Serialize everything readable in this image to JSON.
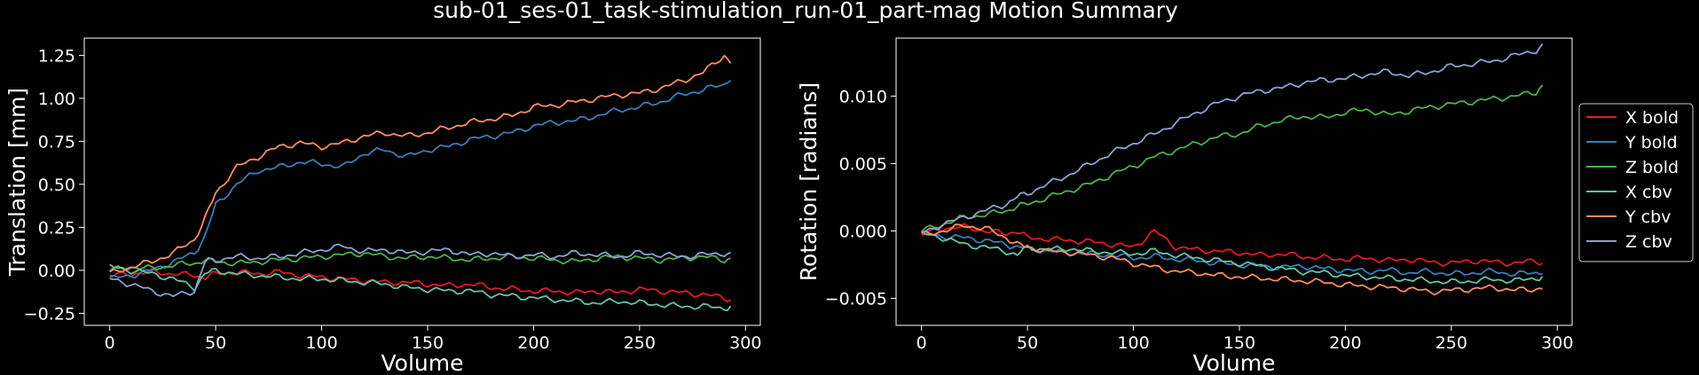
{
  "figure": {
    "title": "sub-01_ses-01_task-stimulation_run-01_part-mag Motion Summary",
    "background": "#000000",
    "foreground": "#ffffff"
  },
  "legend": {
    "placement": "right",
    "entries": [
      {
        "name": "X bold",
        "color": "#e41a1c"
      },
      {
        "name": "Y bold",
        "color": "#377eb8"
      },
      {
        "name": "Z bold",
        "color": "#4daf4a"
      },
      {
        "name": "X cbv",
        "color": "#66c2a5"
      },
      {
        "name": "Y cbv",
        "color": "#fc8d62"
      },
      {
        "name": "Z cbv",
        "color": "#8da0cb"
      }
    ]
  },
  "chart_data": [
    {
      "type": "line",
      "xlabel": "Volume",
      "ylabel": "Translation [mm]",
      "xlim": [
        -12,
        307
      ],
      "ylim": [
        -0.32,
        1.35
      ],
      "xticks": [
        0,
        50,
        100,
        150,
        200,
        250,
        300
      ],
      "yticks": [
        -0.25,
        0.0,
        0.25,
        0.5,
        0.75,
        1.0,
        1.25
      ],
      "ytick_labels": [
        "−0.25",
        "0.00",
        "0.25",
        "0.50",
        "0.75",
        "1.00",
        "1.25"
      ],
      "grid": false,
      "x": [
        0,
        10,
        20,
        30,
        40,
        45,
        50,
        60,
        70,
        80,
        90,
        100,
        110,
        120,
        130,
        140,
        150,
        160,
        170,
        180,
        190,
        200,
        210,
        220,
        230,
        240,
        250,
        260,
        270,
        280,
        290,
        293
      ],
      "series": [
        {
          "name": "X bold",
          "color": "#e41a1c",
          "values": [
            -0.03,
            -0.02,
            -0.01,
            -0.02,
            -0.03,
            -0.04,
            -0.02,
            -0.01,
            -0.02,
            -0.01,
            -0.03,
            -0.04,
            -0.05,
            -0.06,
            -0.07,
            -0.07,
            -0.08,
            -0.09,
            -0.08,
            -0.1,
            -0.11,
            -0.12,
            -0.12,
            -0.13,
            -0.12,
            -0.13,
            -0.11,
            -0.12,
            -0.13,
            -0.14,
            -0.16,
            -0.17
          ]
        },
        {
          "name": "Y bold",
          "color": "#377eb8",
          "values": [
            -0.05,
            -0.03,
            0.0,
            0.05,
            0.1,
            0.2,
            0.38,
            0.5,
            0.58,
            0.6,
            0.63,
            0.62,
            0.6,
            0.68,
            0.7,
            0.66,
            0.7,
            0.72,
            0.76,
            0.78,
            0.8,
            0.84,
            0.86,
            0.87,
            0.9,
            0.93,
            0.95,
            0.98,
            1.02,
            1.05,
            1.08,
            1.12
          ]
        },
        {
          "name": "Z bold",
          "color": "#4daf4a",
          "values": [
            0.0,
            0.02,
            0.01,
            0.03,
            0.04,
            0.06,
            0.05,
            0.04,
            0.05,
            0.06,
            0.07,
            0.08,
            0.09,
            0.1,
            0.08,
            0.07,
            0.08,
            0.07,
            0.06,
            0.07,
            0.08,
            0.07,
            0.06,
            0.05,
            0.07,
            0.08,
            0.07,
            0.06,
            0.07,
            0.08,
            0.06,
            0.07
          ]
        },
        {
          "name": "X cbv",
          "color": "#66c2a5",
          "values": [
            0.02,
            0.0,
            -0.02,
            -0.05,
            -0.1,
            -0.02,
            0.0,
            -0.02,
            -0.03,
            -0.04,
            -0.05,
            -0.05,
            -0.06,
            -0.07,
            -0.08,
            -0.1,
            -0.11,
            -0.12,
            -0.12,
            -0.14,
            -0.15,
            -0.16,
            -0.17,
            -0.18,
            -0.19,
            -0.18,
            -0.19,
            -0.2,
            -0.21,
            -0.21,
            -0.22,
            -0.21
          ]
        },
        {
          "name": "Y cbv",
          "color": "#fc8d62",
          "values": [
            -0.02,
            0.02,
            0.05,
            0.1,
            0.18,
            0.3,
            0.45,
            0.6,
            0.66,
            0.72,
            0.74,
            0.72,
            0.74,
            0.78,
            0.8,
            0.78,
            0.8,
            0.83,
            0.86,
            0.88,
            0.9,
            0.95,
            0.96,
            0.98,
            1.0,
            1.02,
            1.03,
            1.06,
            1.1,
            1.15,
            1.25,
            1.21
          ]
        },
        {
          "name": "Z cbv",
          "color": "#8da0cb",
          "values": [
            -0.05,
            -0.08,
            -0.12,
            -0.15,
            -0.12,
            0.05,
            0.06,
            0.08,
            0.07,
            0.08,
            0.1,
            0.12,
            0.14,
            0.11,
            0.12,
            0.1,
            0.11,
            0.12,
            0.09,
            0.1,
            0.08,
            0.09,
            0.08,
            0.1,
            0.09,
            0.08,
            0.1,
            0.09,
            0.08,
            0.09,
            0.1,
            0.09
          ]
        }
      ]
    },
    {
      "type": "line",
      "xlabel": "Volume",
      "ylabel": "Rotation [radians]",
      "xlim": [
        -12,
        307
      ],
      "ylim": [
        -0.007,
        0.0143
      ],
      "xticks": [
        0,
        50,
        100,
        150,
        200,
        250,
        300
      ],
      "yticks": [
        -0.005,
        0.0,
        0.005,
        0.01
      ],
      "ytick_labels": [
        "−0.005",
        "0.000",
        "0.005",
        "0.010"
      ],
      "grid": false,
      "x": [
        0,
        10,
        20,
        30,
        40,
        45,
        50,
        60,
        70,
        80,
        90,
        100,
        110,
        120,
        130,
        140,
        150,
        160,
        170,
        180,
        190,
        200,
        210,
        220,
        230,
        240,
        250,
        260,
        270,
        280,
        290,
        293
      ],
      "series": [
        {
          "name": "X bold",
          "color": "#e41a1c",
          "values": [
            -0.0003,
            0.0002,
            0.0003,
            0.0,
            -0.0002,
            0.0,
            -0.0005,
            -0.0006,
            -0.0007,
            -0.0008,
            -0.001,
            -0.0012,
            0.0,
            -0.0012,
            -0.0014,
            -0.0015,
            -0.0016,
            -0.0018,
            -0.0017,
            -0.0019,
            -0.002,
            -0.0021,
            -0.002,
            -0.0022,
            -0.0021,
            -0.0023,
            -0.0024,
            -0.0022,
            -0.0023,
            -0.0024,
            -0.0022,
            -0.0024
          ]
        },
        {
          "name": "Y bold",
          "color": "#377eb8",
          "values": [
            -0.0002,
            -0.0004,
            -0.0005,
            -0.0007,
            -0.001,
            -0.0012,
            -0.0013,
            -0.0015,
            -0.0016,
            -0.0017,
            -0.0018,
            -0.002,
            -0.0019,
            -0.0021,
            -0.0022,
            -0.0024,
            -0.0025,
            -0.0026,
            -0.0027,
            -0.0026,
            -0.0028,
            -0.0029,
            -0.003,
            -0.0029,
            -0.0031,
            -0.003,
            -0.0032,
            -0.0031,
            -0.003,
            -0.0032,
            -0.0031,
            -0.003
          ]
        },
        {
          "name": "Z bold",
          "color": "#4daf4a",
          "values": [
            0.0,
            0.0005,
            0.001,
            0.0012,
            0.0015,
            0.0018,
            0.002,
            0.0025,
            0.003,
            0.0035,
            0.0042,
            0.0048,
            0.0055,
            0.006,
            0.0065,
            0.007,
            0.0072,
            0.0078,
            0.0082,
            0.0085,
            0.0084,
            0.0088,
            0.009,
            0.0086,
            0.0089,
            0.0092,
            0.0094,
            0.0096,
            0.0098,
            0.01,
            0.0103,
            0.0108
          ]
        },
        {
          "name": "X cbv",
          "color": "#66c2a5",
          "values": [
            -0.0002,
            -0.0005,
            -0.001,
            -0.0012,
            -0.0015,
            -0.0018,
            -0.0012,
            -0.0014,
            -0.0013,
            -0.0015,
            -0.0016,
            -0.0017,
            -0.0015,
            -0.0018,
            -0.002,
            -0.0022,
            -0.0024,
            -0.0026,
            -0.0028,
            -0.003,
            -0.0031,
            -0.0033,
            -0.0034,
            -0.0035,
            -0.0036,
            -0.0037,
            -0.0038,
            -0.0037,
            -0.0036,
            -0.0037,
            -0.0035,
            -0.0034
          ]
        },
        {
          "name": "Y cbv",
          "color": "#fc8d62",
          "values": [
            -0.0003,
            0.0,
            0.0004,
            0.0002,
            -0.0005,
            -0.001,
            -0.0012,
            -0.0015,
            -0.0016,
            -0.0018,
            -0.002,
            -0.0024,
            -0.0027,
            -0.003,
            -0.0031,
            -0.0033,
            -0.0034,
            -0.0035,
            -0.0036,
            -0.0037,
            -0.0038,
            -0.004,
            -0.0041,
            -0.0042,
            -0.0043,
            -0.0045,
            -0.0044,
            -0.0043,
            -0.0042,
            -0.0044,
            -0.0043,
            -0.0042
          ]
        },
        {
          "name": "Z cbv",
          "color": "#8da0cb",
          "values": [
            -0.0002,
            0.0005,
            0.001,
            0.0015,
            0.002,
            0.0025,
            0.0028,
            0.0035,
            0.0042,
            0.005,
            0.0058,
            0.0065,
            0.0072,
            0.008,
            0.0088,
            0.0095,
            0.01,
            0.0104,
            0.0106,
            0.011,
            0.0112,
            0.0113,
            0.0116,
            0.0118,
            0.0115,
            0.0118,
            0.0122,
            0.0124,
            0.0126,
            0.013,
            0.0134,
            0.0137
          ]
        }
      ]
    }
  ]
}
